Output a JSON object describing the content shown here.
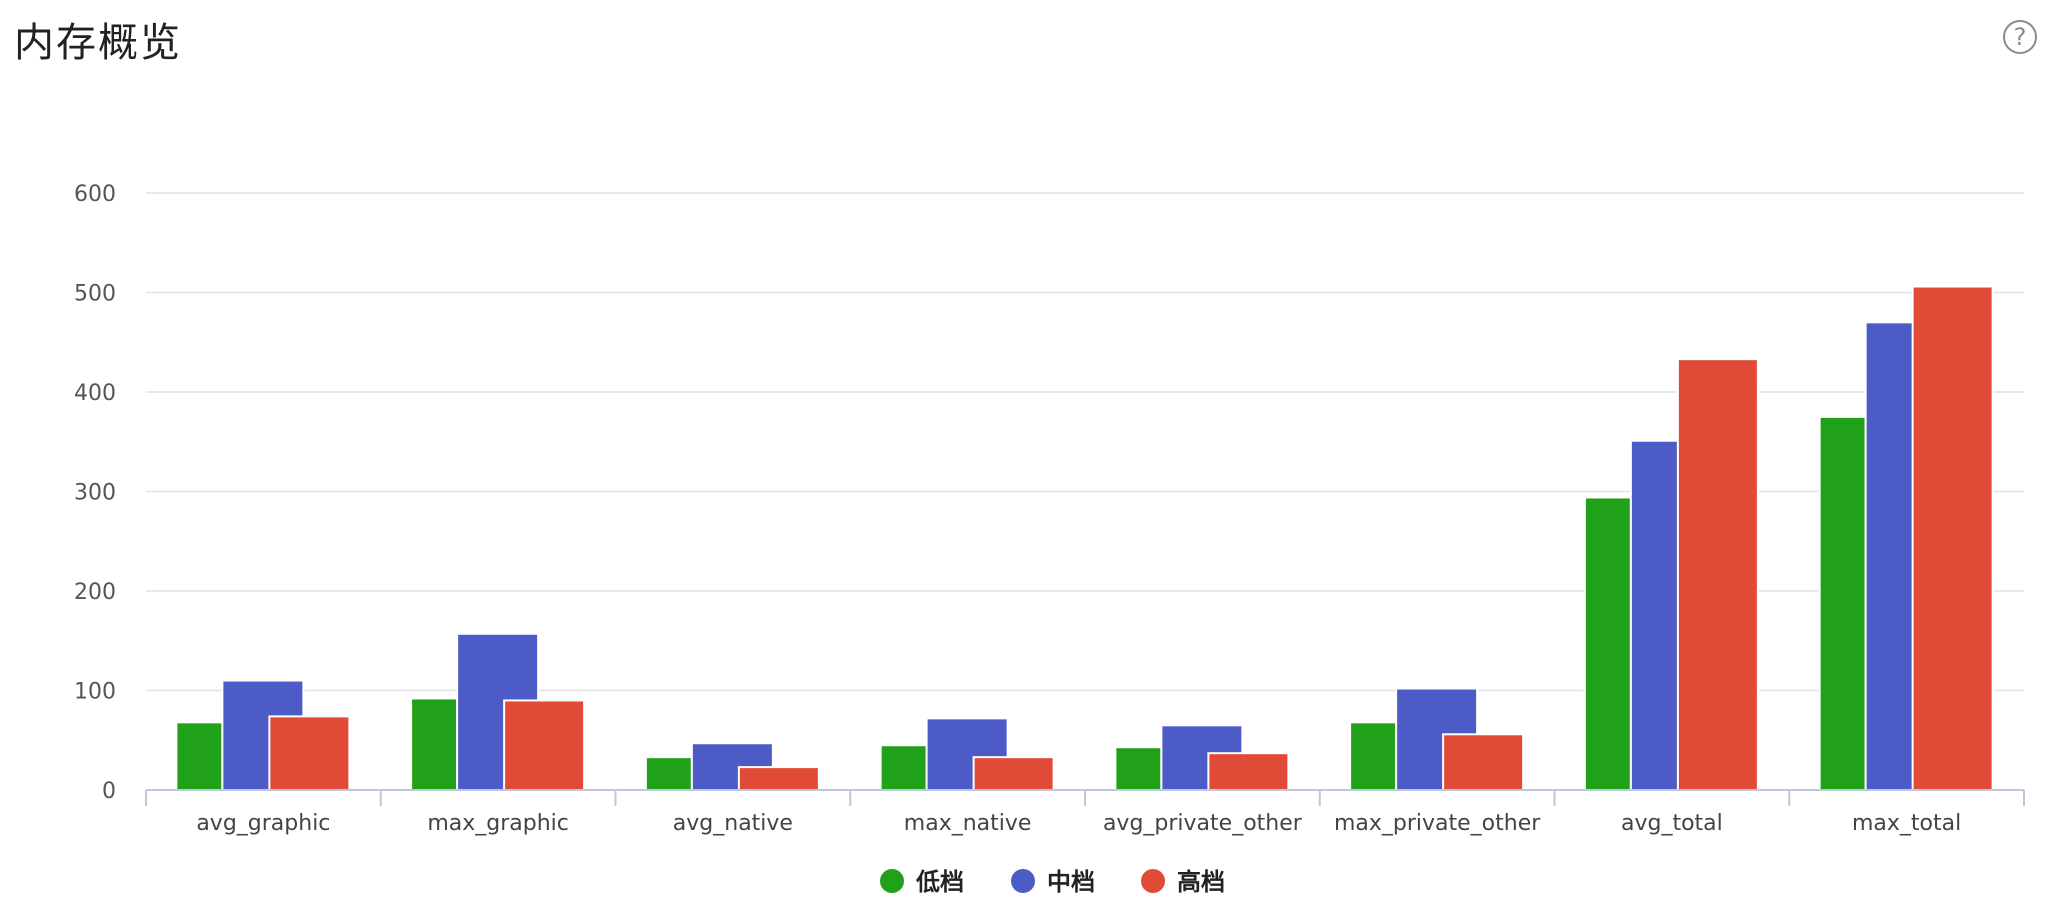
{
  "header": {
    "title": "内存概览",
    "help_glyph": "?"
  },
  "chart_data": {
    "type": "bar",
    "categories": [
      "avg_graphic",
      "max_graphic",
      "avg_native",
      "max_native",
      "avg_private_other",
      "max_private_other",
      "avg_total",
      "max_total"
    ],
    "series": [
      {
        "name": "低档",
        "color": "#21a11a",
        "values": [
          68,
          92,
          33,
          45,
          43,
          68,
          294,
          375
        ]
      },
      {
        "name": "中档",
        "color": "#4c5bc6",
        "values": [
          110,
          157,
          47,
          72,
          65,
          102,
          351,
          470
        ]
      },
      {
        "name": "高档",
        "color": "#e04b37",
        "values": [
          74,
          90,
          23,
          33,
          37,
          56,
          433,
          506
        ]
      }
    ],
    "yticks": [
      0,
      100,
      200,
      300,
      400,
      500,
      600
    ],
    "ylim": [
      0,
      600
    ],
    "grid": true,
    "legend_position": "bottom-center"
  }
}
